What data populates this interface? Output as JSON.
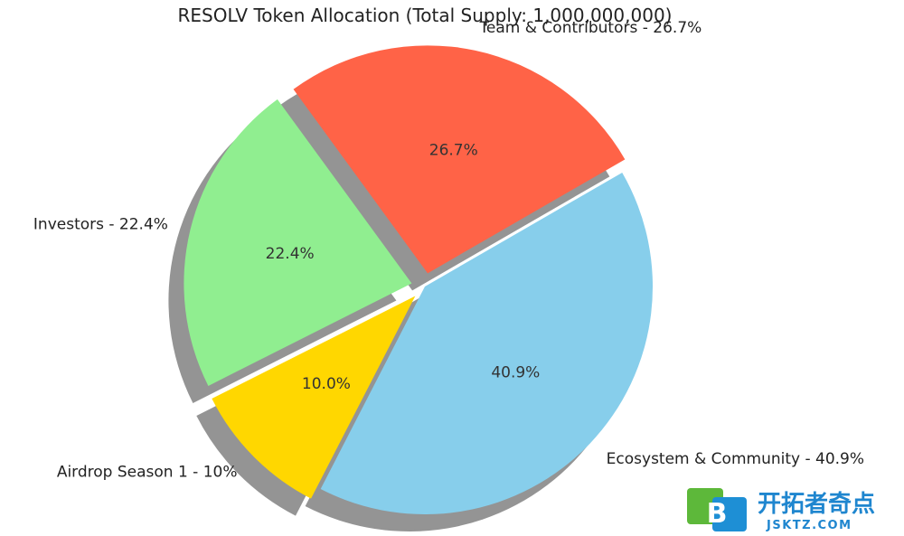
{
  "chart_data": {
    "type": "pie",
    "title": "RESOLV Token Allocation (Total Supply: 1,000,000,000)",
    "slices": [
      {
        "label": "Team & Contributors - 26.7%",
        "value": 26.7,
        "pct_label": "26.7%",
        "color": "#FF6347",
        "exploded": true
      },
      {
        "label": "Investors - 22.4%",
        "value": 22.4,
        "pct_label": "22.4%",
        "color": "#90EE90",
        "exploded": true
      },
      {
        "label": "Airdrop Season 1 - 10%",
        "value": 10.0,
        "pct_label": "10.0%",
        "color": "#FFD700",
        "exploded": true
      },
      {
        "label": "Ecosystem & Community - 40.9%",
        "value": 40.9,
        "pct_label": "40.9%",
        "color": "#87CEEB",
        "exploded": false
      }
    ],
    "start_angle_deg": 30,
    "direction": "counterclockwise",
    "shadow": true
  },
  "watermark": {
    "logo_letter": "B",
    "name": "开拓者奇点",
    "domain": "JSKTZ.COM",
    "colors": {
      "green": "#5DB83A",
      "blue": "#1E8FD5",
      "text": "#1F86CF"
    }
  }
}
